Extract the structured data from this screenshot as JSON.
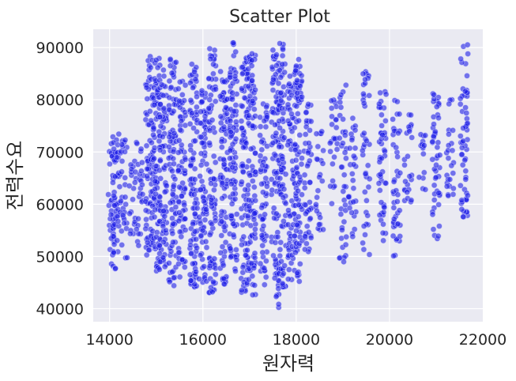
{
  "chart_data": {
    "type": "scatter",
    "title": "Scatter Plot",
    "xlabel": "원자력",
    "ylabel": "전력수요",
    "xlim": [
      13650,
      22000
    ],
    "ylim": [
      37500,
      93500
    ],
    "xticks": [
      14000,
      16000,
      18000,
      20000,
      22000
    ],
    "yticks": [
      40000,
      50000,
      60000,
      70000,
      80000,
      90000
    ],
    "xtick_labels": [
      "14000",
      "16000",
      "18000",
      "20000",
      "22000"
    ],
    "ytick_labels": [
      "40000",
      "50000",
      "60000",
      "70000",
      "80000",
      "90000"
    ],
    "grid": true,
    "background": "#eaeaf2",
    "point_color": "#0000ff",
    "clusters": [
      {
        "x": 14050,
        "y": [
          48000,
          73000
        ],
        "n": 40
      },
      {
        "x": 14150,
        "y": [
          47500,
          73500
        ],
        "n": 45
      },
      {
        "x": 14300,
        "y": [
          49000,
          72500
        ],
        "n": 30
      },
      {
        "x": 14500,
        "y": [
          53000,
          69000
        ],
        "n": 20
      },
      {
        "x": 14650,
        "y": [
          52000,
          72000
        ],
        "n": 25
      },
      {
        "x": 14850,
        "y": [
          50000,
          89000
        ],
        "n": 80
      },
      {
        "x": 15000,
        "y": [
          47000,
          88000
        ],
        "n": 90
      },
      {
        "x": 15150,
        "y": [
          48000,
          87000
        ],
        "n": 80
      },
      {
        "x": 15350,
        "y": [
          43500,
          89000
        ],
        "n": 90
      },
      {
        "x": 15550,
        "y": [
          46000,
          85000
        ],
        "n": 80
      },
      {
        "x": 15800,
        "y": [
          44000,
          87000
        ],
        "n": 100
      },
      {
        "x": 16000,
        "y": [
          45000,
          85000
        ],
        "n": 80
      },
      {
        "x": 16200,
        "y": [
          43000,
          90000
        ],
        "n": 90
      },
      {
        "x": 16450,
        "y": [
          44000,
          86000
        ],
        "n": 90
      },
      {
        "x": 16650,
        "y": [
          46000,
          91000
        ],
        "n": 100
      },
      {
        "x": 16900,
        "y": [
          43000,
          88000
        ],
        "n": 100
      },
      {
        "x": 17050,
        "y": [
          42500,
          89000
        ],
        "n": 100
      },
      {
        "x": 17300,
        "y": [
          44000,
          80000
        ],
        "n": 70
      },
      {
        "x": 17550,
        "y": [
          40000,
          90000
        ],
        "n": 90
      },
      {
        "x": 17700,
        "y": [
          44000,
          91000
        ],
        "n": 90
      },
      {
        "x": 17900,
        "y": [
          45000,
          85000
        ],
        "n": 70
      },
      {
        "x": 18050,
        "y": [
          45000,
          88000
        ],
        "n": 90
      },
      {
        "x": 18250,
        "y": [
          50000,
          80000
        ],
        "n": 50
      },
      {
        "x": 18500,
        "y": [
          54000,
          74000
        ],
        "n": 25
      },
      {
        "x": 18800,
        "y": [
          60000,
          80000
        ],
        "n": 25
      },
      {
        "x": 19000,
        "y": [
          48000,
          83000
        ],
        "n": 40
      },
      {
        "x": 19200,
        "y": [
          53000,
          80000
        ],
        "n": 30
      },
      {
        "x": 19500,
        "y": [
          49000,
          86000
        ],
        "n": 40
      },
      {
        "x": 19850,
        "y": [
          53000,
          83000
        ],
        "n": 50
      },
      {
        "x": 20150,
        "y": [
          50000,
          80000
        ],
        "n": 45
      },
      {
        "x": 20400,
        "y": [
          60000,
          78000
        ],
        "n": 25
      },
      {
        "x": 20700,
        "y": [
          62000,
          76000
        ],
        "n": 15
      },
      {
        "x": 21000,
        "y": [
          53000,
          82000
        ],
        "n": 50
      },
      {
        "x": 21300,
        "y": [
          61000,
          80000
        ],
        "n": 25
      },
      {
        "x": 21600,
        "y": [
          56000,
          91000
        ],
        "n": 60
      }
    ]
  }
}
